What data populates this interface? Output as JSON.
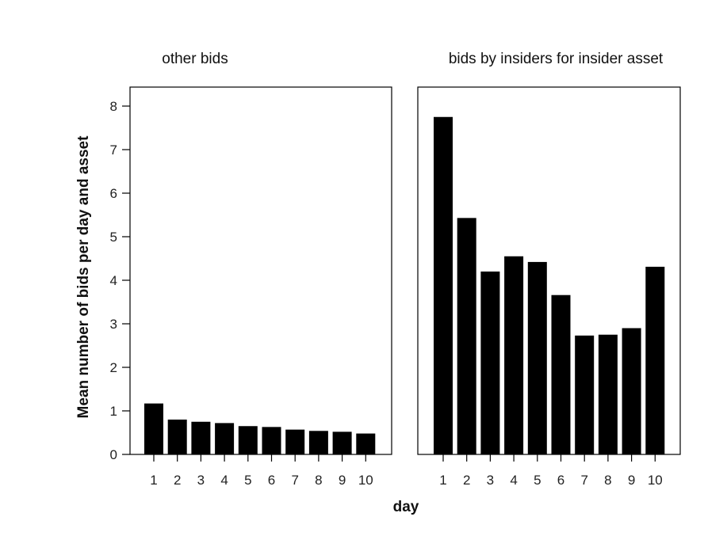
{
  "chart_data": {
    "type": "bar",
    "ylabel": "Mean number of bids per day and asset",
    "xlabel": "day",
    "ylim": [
      0,
      8
    ],
    "yticks": [
      0,
      1,
      2,
      3,
      4,
      5,
      6,
      7,
      8
    ],
    "categories": [
      "1",
      "2",
      "3",
      "4",
      "5",
      "6",
      "7",
      "8",
      "9",
      "10"
    ],
    "bar_color": "#000000",
    "grid": false,
    "panels": [
      {
        "title": "other bids",
        "values": [
          1.17,
          0.8,
          0.75,
          0.72,
          0.65,
          0.63,
          0.57,
          0.54,
          0.52,
          0.48
        ]
      },
      {
        "title": "bids by insiders for insider asset",
        "values": [
          7.75,
          5.43,
          4.2,
          4.55,
          4.42,
          3.66,
          2.73,
          2.75,
          2.9,
          4.31
        ]
      }
    ]
  }
}
